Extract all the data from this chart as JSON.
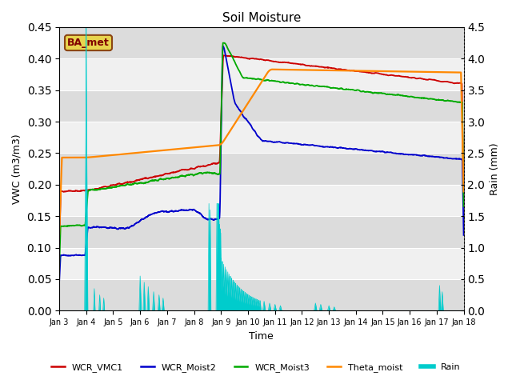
{
  "title": "Soil Moisture",
  "xlabel": "Time",
  "ylabel_left": "VWC (m3/m3)",
  "ylabel_right": "Rain (mm)",
  "ylim_left": [
    0.0,
    0.45
  ],
  "ylim_right": [
    0.0,
    4.5
  ],
  "yticks_left": [
    0.0,
    0.05,
    0.1,
    0.15,
    0.2,
    0.25,
    0.3,
    0.35,
    0.4,
    0.45
  ],
  "yticks_right": [
    0.0,
    0.5,
    1.0,
    1.5,
    2.0,
    2.5,
    3.0,
    3.5,
    4.0,
    4.5
  ],
  "background_color": "#ffffff",
  "plot_bg_light": "#f0f0f0",
  "plot_bg_dark": "#dcdcdc",
  "annotation_text": "BA_met",
  "annotation_color": "#800000",
  "annotation_bg": "#e8d44d",
  "annotation_edge": "#8B4513",
  "colors": {
    "WCR_VMC1": "#cc0000",
    "WCR_Moist2": "#0000cc",
    "WCR_Moist3": "#00aa00",
    "Theta_moist": "#ff8800",
    "Rain": "#00cccc"
  },
  "x_tick_labels": [
    "Jan 3",
    "Jan 4",
    "Jan 5",
    "Jan 6",
    "Jan 7",
    "Jan 8",
    "Jan 9",
    "Jan 10",
    "Jan 11",
    "Jan 12",
    "Jan 13",
    "Jan 14",
    "Jan 15",
    "Jan 16",
    "Jan 17",
    "Jan 18"
  ],
  "figsize": [
    6.4,
    4.8
  ],
  "dpi": 100
}
